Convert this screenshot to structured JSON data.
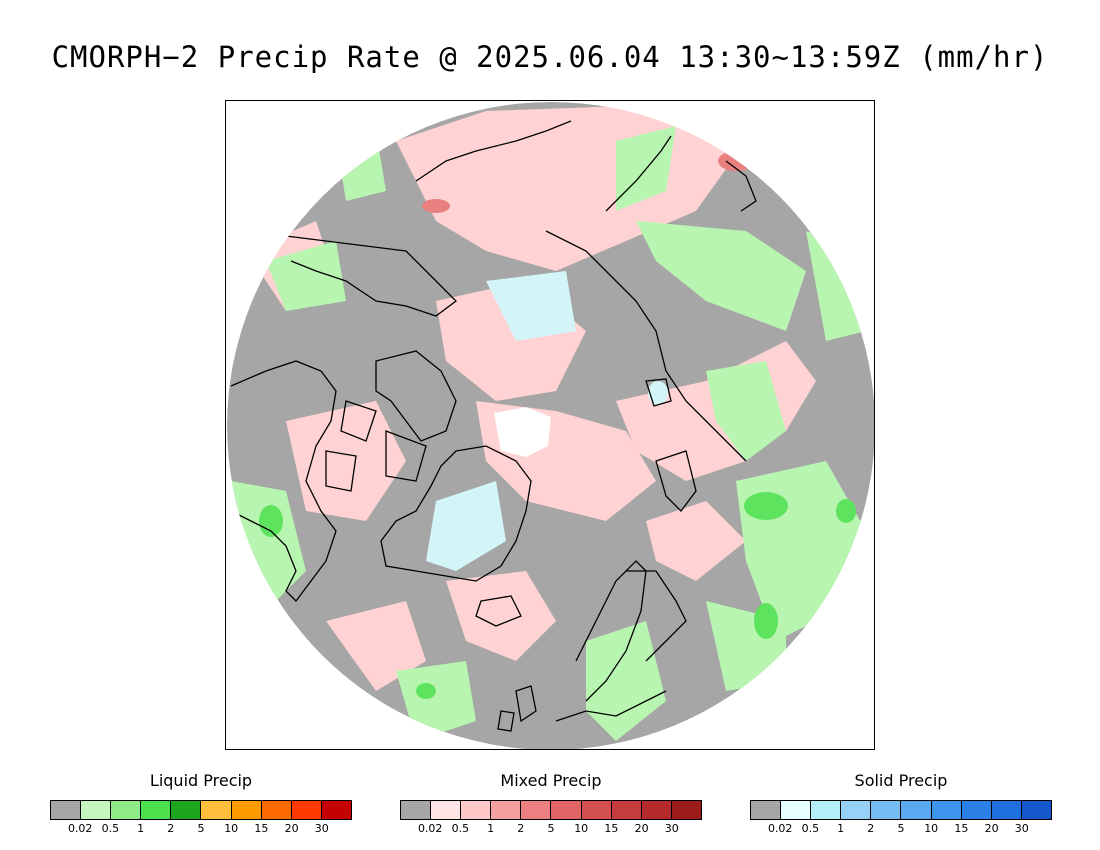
{
  "title": "CMORPH−2 Precip Rate @ 2025.06.04 13:30~13:59Z (mm/hr)",
  "map": {
    "projection": "north-polar-stereographic",
    "colors": {
      "no_precip": "#a6a6a6",
      "liquid_light": "#b8f5b0",
      "liquid_mid": "#5ee35e",
      "mixed_light": "#ffd3d3",
      "mixed_mid": "#e88080",
      "solid_light": "#d3f5f8",
      "polar_gap": "#ffffff",
      "coastline": "#000000"
    }
  },
  "legends": [
    {
      "title": "Liquid Precip",
      "colors": [
        "#a6a6a6",
        "#c5f7bd",
        "#8feb85",
        "#4ce04c",
        "#1ea61e",
        "#ffbe3c",
        "#ff9b00",
        "#ff6a00",
        "#ff3a00",
        "#c40000"
      ],
      "ticks": [
        "0.02",
        "0.5",
        "1",
        "2",
        "5",
        "10",
        "15",
        "20",
        "30"
      ]
    },
    {
      "title": "Mixed Precip",
      "colors": [
        "#a6a6a6",
        "#ffe6e6",
        "#ffc8c8",
        "#f5a0a0",
        "#ec8080",
        "#e06464",
        "#d45050",
        "#c43c3c",
        "#b42a2a",
        "#9c1c1c"
      ],
      "ticks": [
        "0.02",
        "0.5",
        "1",
        "2",
        "5",
        "10",
        "15",
        "20",
        "30"
      ]
    },
    {
      "title": "Solid Precip",
      "colors": [
        "#a6a6a6",
        "#e6ffff",
        "#b4eef8",
        "#96d2f8",
        "#78bcf4",
        "#5aa8f0",
        "#3c94ec",
        "#2a80e6",
        "#1e6ede",
        "#1458cc"
      ],
      "ticks": [
        "0.02",
        "0.5",
        "1",
        "2",
        "5",
        "10",
        "15",
        "20",
        "30"
      ]
    }
  ]
}
